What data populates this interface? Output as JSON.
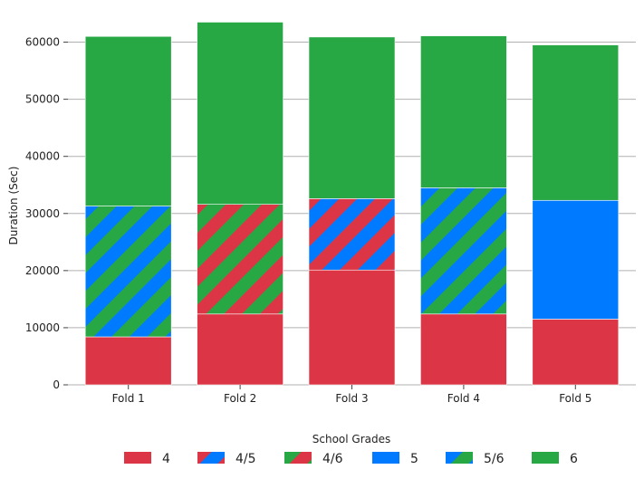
{
  "chart_data": {
    "type": "bar",
    "stacked": true,
    "title": "",
    "xlabel": "",
    "ylabel": "Duration (Sec)",
    "ylim": [
      0,
      65000
    ],
    "yticks": [
      0,
      10000,
      20000,
      30000,
      40000,
      50000,
      60000
    ],
    "grid": "horizontal",
    "categories": [
      "Fold 1",
      "Fold 2",
      "Fold 3",
      "Fold 4",
      "Fold 5"
    ],
    "legend": {
      "title": "School Grades",
      "placement": "bottom-center"
    },
    "series": [
      {
        "name": "4",
        "color": "#dc3545",
        "pattern": "solid",
        "values": [
          8400,
          12400,
          20100,
          12400,
          11500
        ]
      },
      {
        "name": "4/5",
        "color": "#dc3545",
        "color2": "#007bff",
        "pattern": "stripes",
        "values": [
          0,
          0,
          12500,
          0,
          0
        ]
      },
      {
        "name": "4/6",
        "color": "#dc3545",
        "color2": "#28a745",
        "pattern": "stripes",
        "values": [
          0,
          19200,
          0,
          0,
          0
        ]
      },
      {
        "name": "5",
        "color": "#007bff",
        "pattern": "solid",
        "values": [
          0,
          0,
          0,
          0,
          20800
        ]
      },
      {
        "name": "5/6",
        "color": "#007bff",
        "color2": "#28a745",
        "pattern": "stripes",
        "values": [
          22900,
          0,
          0,
          22100,
          0
        ]
      },
      {
        "name": "6",
        "color": "#28a745",
        "pattern": "solid",
        "values": [
          29700,
          31900,
          28300,
          26600,
          27200
        ]
      }
    ]
  }
}
